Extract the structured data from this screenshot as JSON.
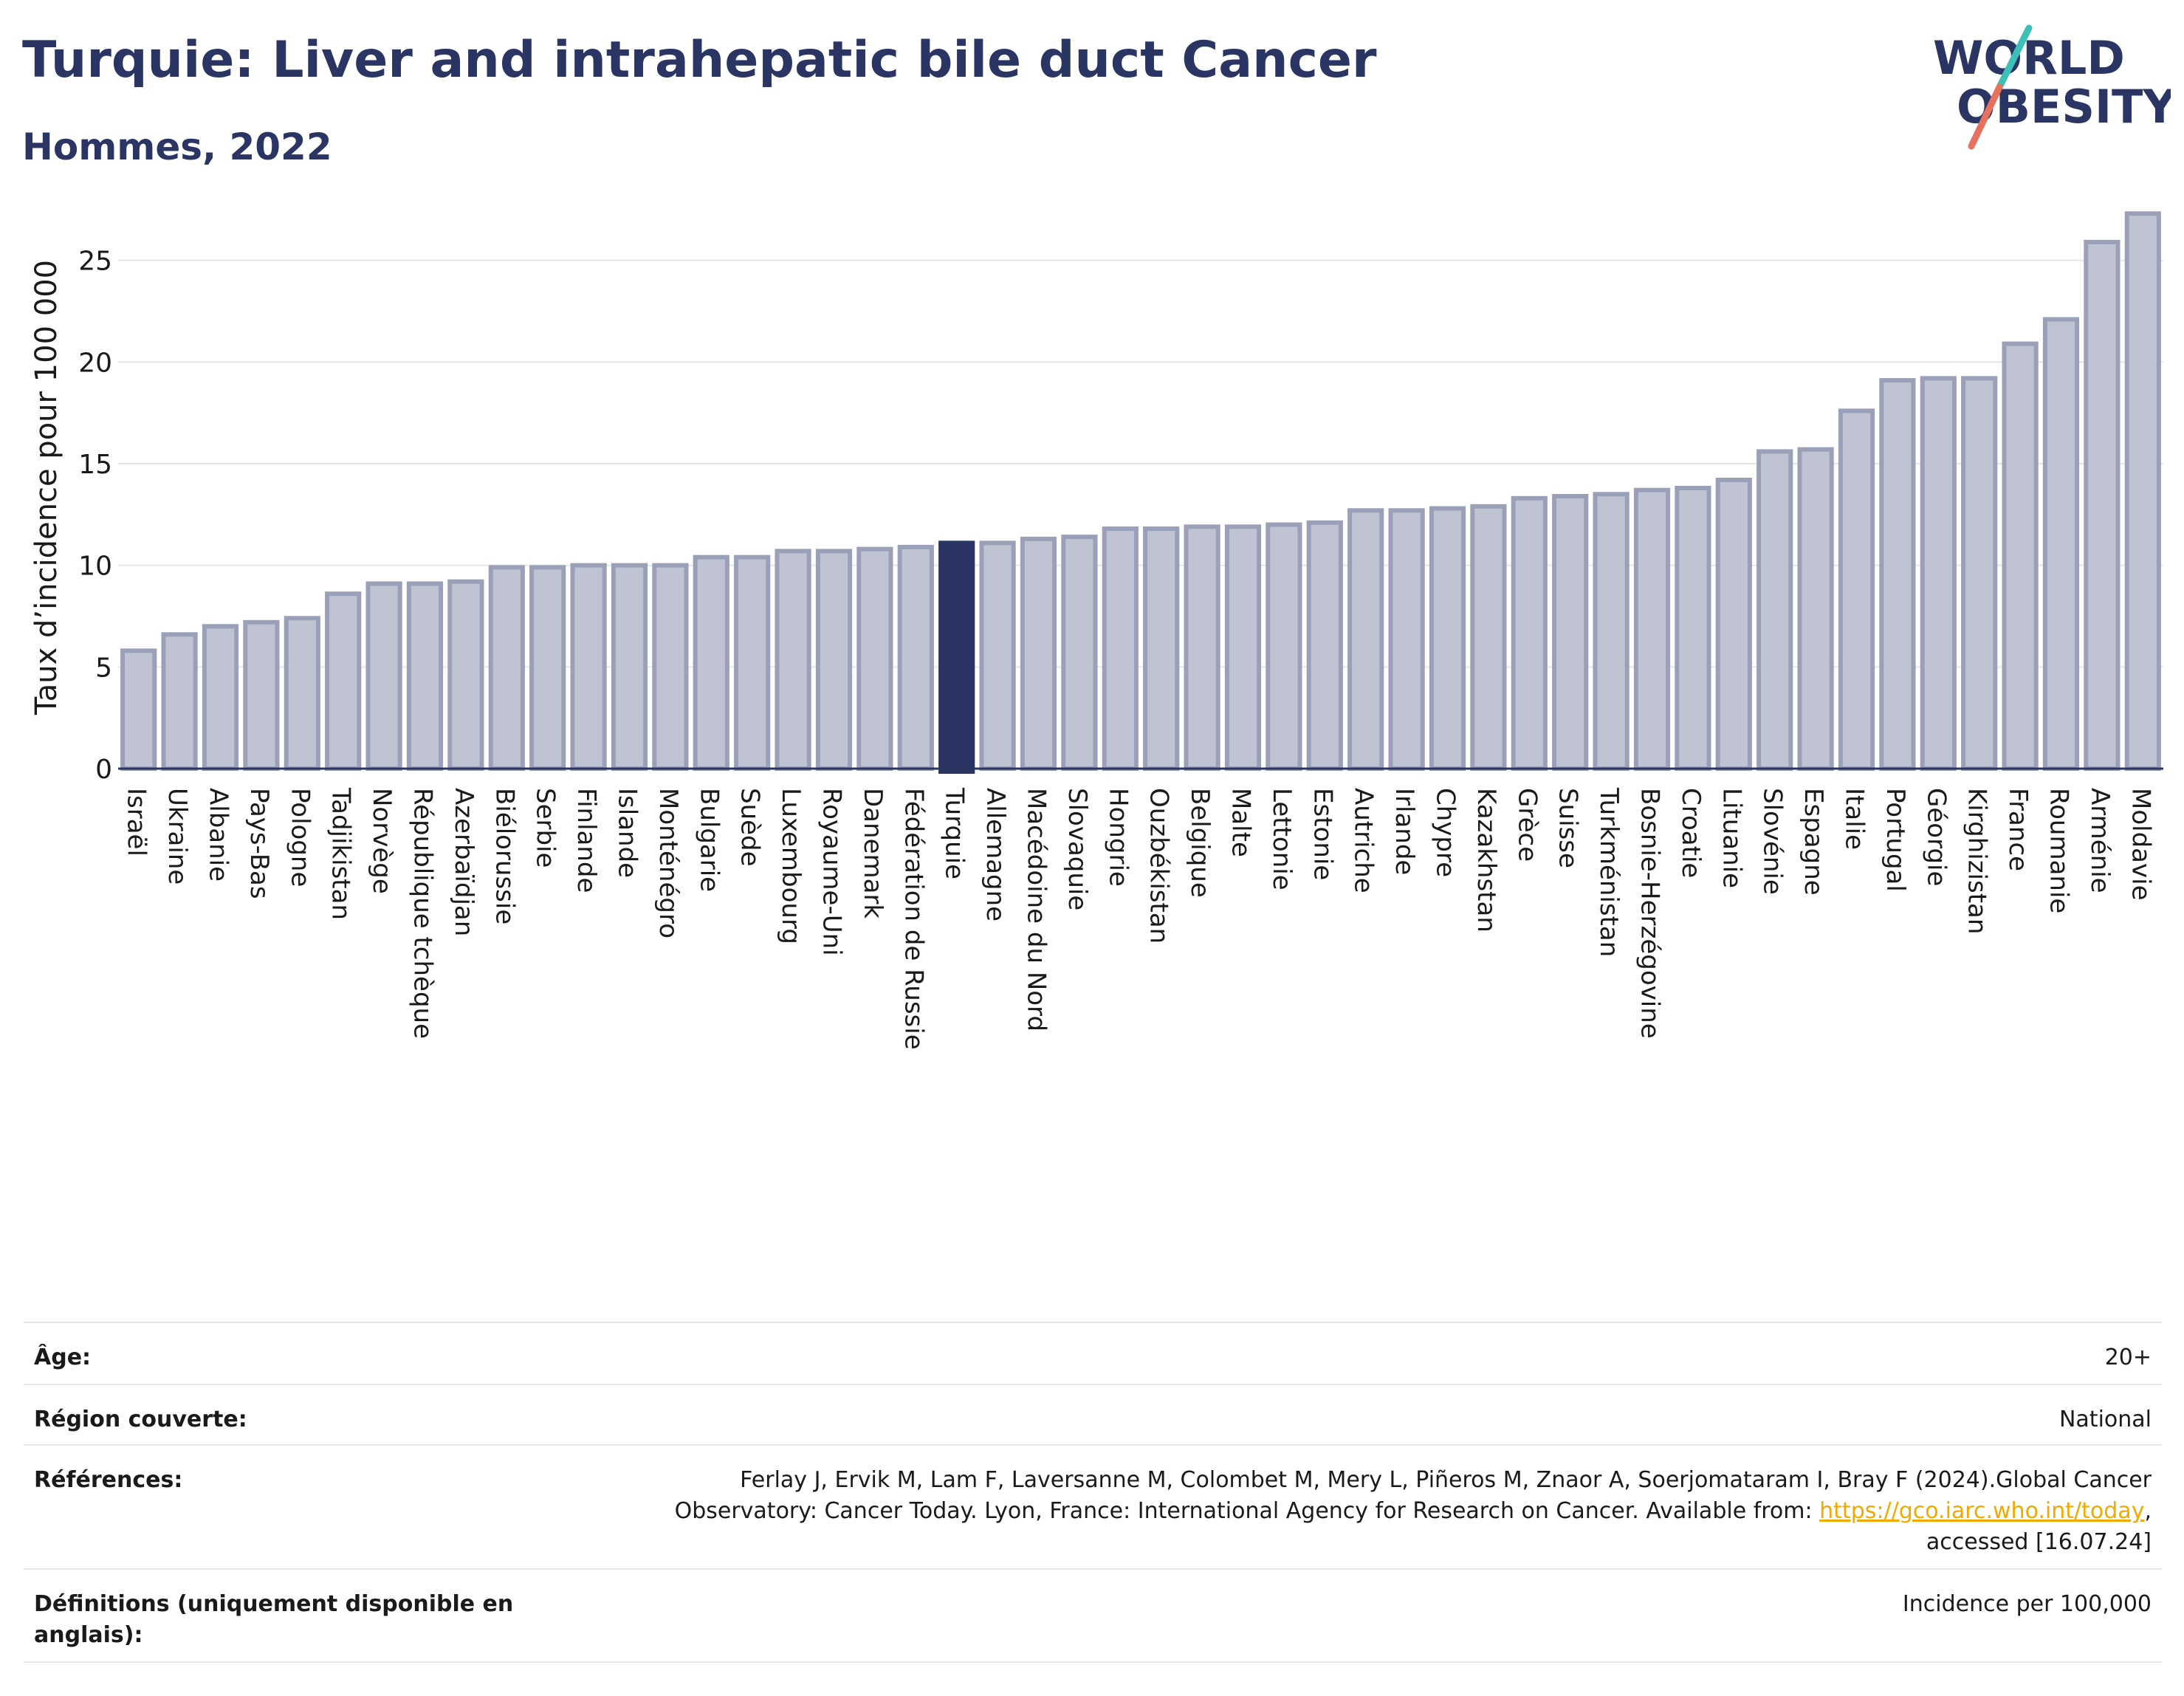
{
  "header": {
    "title": "Turquie: Liver and intrahepatic bile duct Cancer",
    "subtitle": "Hommes, 2022"
  },
  "logo": {
    "line1": "WORLD",
    "line2": "OBESITY",
    "colors": {
      "text": "#2a3564",
      "slash_top": "#3bbfb7",
      "slash_bottom": "#e8705f"
    }
  },
  "chart_data": {
    "type": "bar",
    "ylabel": "Taux d’incidence pour 100 000",
    "xlabel": "",
    "ylim": [
      0,
      28
    ],
    "yticks": [
      0,
      5,
      10,
      15,
      20,
      25
    ],
    "grid": true,
    "highlight": "Turquie",
    "colors": {
      "bar": "#c0c4d2",
      "bar_edge": "#9aa0b8",
      "highlight": "#2a3564",
      "grid": "#e6e6e6"
    },
    "categories": [
      "Israël",
      "Ukraine",
      "Albanie",
      "Pays-Bas",
      "Pologne",
      "Tadjikistan",
      "Norvège",
      "République tchèque",
      "Azerbaïdjan",
      "Biélorussie",
      "Serbie",
      "Finlande",
      "Islande",
      "Monténégro",
      "Bulgarie",
      "Suède",
      "Luxembourg",
      "Royaume-Uni",
      "Danemark",
      "Fédération de Russie",
      "Turquie",
      "Allemagne",
      "Macédoine du Nord",
      "Slovaquie",
      "Hongrie",
      "Ouzbékistan",
      "Belgique",
      "Malte",
      "Lettonie",
      "Estonie",
      "Autriche",
      "Irlande",
      "Chypre",
      "Kazakhstan",
      "Grèce",
      "Suisse",
      "Turkménistan",
      "Bosnie-Herzégovine",
      "Croatie",
      "Lituanie",
      "Slovénie",
      "Espagne",
      "Italie",
      "Portugal",
      "Géorgie",
      "Kirghizistan",
      "France",
      "Roumanie",
      "Arménie",
      "Moldavie"
    ],
    "values": [
      5.8,
      6.6,
      7.0,
      7.2,
      7.4,
      8.6,
      9.1,
      9.1,
      9.2,
      9.9,
      9.9,
      10.0,
      10.0,
      10.0,
      10.4,
      10.4,
      10.7,
      10.7,
      10.8,
      10.9,
      11.1,
      11.1,
      11.3,
      11.4,
      11.8,
      11.8,
      11.9,
      11.9,
      12.0,
      12.1,
      12.7,
      12.7,
      12.8,
      12.9,
      13.3,
      13.4,
      13.5,
      13.7,
      13.8,
      14.2,
      15.6,
      15.7,
      17.6,
      19.1,
      19.2,
      19.2,
      20.9,
      22.1,
      25.9,
      27.3
    ]
  },
  "info": {
    "age_label": "Âge:",
    "age_value": "20+",
    "region_label": "Région couverte:",
    "region_value": "National",
    "refs_label": "Références:",
    "refs_line1": "Ferlay J, Ervik M, Lam F, Laversanne M, Colombet M, Mery L, Piñeros M, Znaor A, Soerjomataram I, Bray F (2024).Global Cancer",
    "refs_line2": "Observatory: Cancer Today. Lyon, France: International Agency for Research on Cancer. Available from: ",
    "refs_link": "https://gco.iarc.who.int/today",
    "refs_line2_end": ",",
    "refs_line3": "accessed [16.07.24]",
    "defs_label": "Définitions (uniquement disponible en anglais):",
    "defs_value": "Incidence per 100,000"
  }
}
